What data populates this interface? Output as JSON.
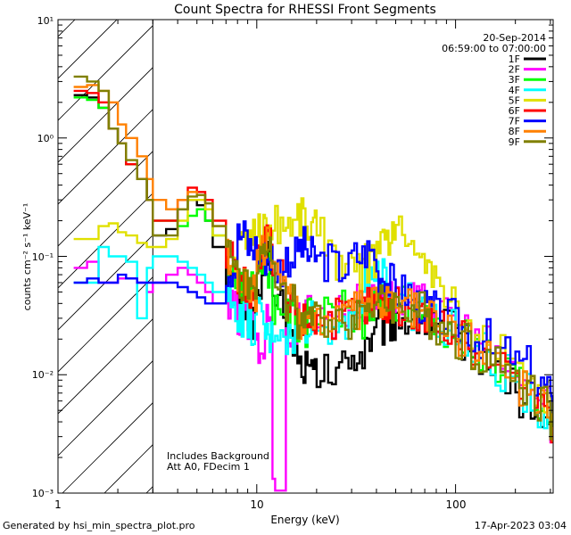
{
  "chart_data": {
    "type": "line",
    "title": "Count Spectra for RHESSI Front Segments",
    "xlabel": "Energy (keV)",
    "ylabel": "counts cm⁻² s⁻¹ keV⁻¹",
    "xscale": "log",
    "yscale": "log",
    "xlim": [
      1,
      300
    ],
    "ylim": [
      0.001,
      10
    ],
    "x_tick_labels": [
      "1",
      "10",
      "100"
    ],
    "y_tick_labels": [
      "10⁻³",
      "10⁻²",
      "10⁻¹",
      "10⁰",
      "10¹"
    ],
    "date": "20-Sep-2014",
    "time_range": "06:59:00 to 07:00:00",
    "shaded_region": {
      "x_max": 3,
      "pattern": "diagonal hatch"
    },
    "annotations": [
      "Includes Background",
      "Att A0, FDecim 1"
    ],
    "legend_position": "top-right",
    "series": [
      {
        "name": "1F",
        "color": "#000000",
        "x": [
          1.2,
          1.4,
          1.6,
          1.8,
          2,
          2.2,
          2.5,
          2.8,
          3,
          3.5,
          4,
          4.5,
          5,
          5.5,
          6,
          7,
          8,
          9,
          10,
          11,
          12,
          14,
          16,
          18,
          20,
          25,
          30,
          35,
          40,
          45,
          50,
          60,
          70,
          80,
          100,
          120,
          150,
          200,
          250,
          300
        ],
        "y": [
          2.3,
          2.2,
          1.8,
          1.2,
          0.9,
          0.6,
          0.45,
          0.3,
          0.15,
          0.17,
          0.25,
          0.3,
          0.27,
          0.2,
          0.12,
          0.06,
          0.04,
          0.03,
          0.05,
          0.1,
          0.04,
          0.02,
          0.012,
          0.01,
          0.01,
          0.012,
          0.015,
          0.02,
          0.025,
          0.028,
          0.03,
          0.03,
          0.028,
          0.025,
          0.02,
          0.015,
          0.01,
          0.006,
          0.004,
          0.003
        ]
      },
      {
        "name": "2F",
        "color": "#ff00ff",
        "x": [
          1.2,
          1.4,
          1.6,
          1.8,
          2,
          2.2,
          2.5,
          2.8,
          3,
          3.5,
          4,
          4.5,
          5,
          5.5,
          6,
          7,
          8,
          9,
          10,
          11,
          12,
          14,
          16,
          18,
          20,
          25,
          30,
          35,
          40,
          45,
          50,
          60,
          70,
          80,
          100,
          120,
          150,
          200,
          250,
          300
        ],
        "y": [
          0.08,
          0.09,
          0.06,
          0.06,
          0.065,
          0.065,
          0.06,
          0.05,
          0.06,
          0.07,
          0.08,
          0.07,
          0.06,
          0.05,
          0.04,
          0.035,
          0.03,
          0.025,
          0.015,
          0.03,
          0.001,
          0.02,
          0.03,
          0.035,
          0.03,
          0.035,
          0.04,
          0.04,
          0.045,
          0.045,
          0.04,
          0.04,
          0.035,
          0.03,
          0.025,
          0.018,
          0.012,
          0.008,
          0.006,
          0.004
        ]
      },
      {
        "name": "3F",
        "color": "#00ff00",
        "x": [
          1.2,
          1.4,
          1.6,
          1.8,
          2,
          2.2,
          2.5,
          2.8,
          3,
          3.5,
          4,
          4.5,
          5,
          5.5,
          6,
          7,
          8,
          9,
          10,
          11,
          12,
          14,
          16,
          18,
          20,
          25,
          30,
          35,
          40,
          45,
          50,
          60,
          70,
          80,
          100,
          120,
          150,
          200,
          250,
          300
        ],
        "y": [
          2.2,
          2.1,
          1.8,
          1.2,
          0.9,
          0.6,
          0.45,
          0.3,
          0.2,
          0.2,
          0.18,
          0.22,
          0.25,
          0.2,
          0.15,
          0.08,
          0.05,
          0.05,
          0.1,
          0.08,
          0.04,
          0.03,
          0.025,
          0.03,
          0.03,
          0.035,
          0.03,
          0.035,
          0.04,
          0.04,
          0.038,
          0.035,
          0.03,
          0.025,
          0.02,
          0.016,
          0.012,
          0.008,
          0.005,
          0.004
        ]
      },
      {
        "name": "4F",
        "color": "#00ffff",
        "x": [
          1.2,
          1.4,
          1.6,
          1.8,
          2,
          2.2,
          2.5,
          2.8,
          3,
          3.5,
          4,
          4.5,
          5,
          5.5,
          6,
          7,
          8,
          9,
          10,
          11,
          12,
          14,
          16,
          18,
          20,
          25,
          30,
          35,
          40,
          45,
          50,
          60,
          70,
          80,
          100,
          120,
          150,
          200,
          250,
          300
        ],
        "y": [
          0.06,
          0.06,
          0.12,
          0.1,
          0.1,
          0.09,
          0.03,
          0.08,
          0.1,
          0.1,
          0.09,
          0.08,
          0.07,
          0.06,
          0.05,
          0.04,
          0.03,
          0.025,
          0.03,
          0.02,
          0.025,
          0.02,
          0.025,
          0.03,
          0.025,
          0.03,
          0.035,
          0.06,
          0.08,
          0.05,
          0.04,
          0.035,
          0.03,
          0.025,
          0.02,
          0.015,
          0.01,
          0.007,
          0.005,
          0.004
        ]
      },
      {
        "name": "5F",
        "color": "#e0e000",
        "x": [
          1.2,
          1.4,
          1.6,
          1.8,
          2,
          2.2,
          2.5,
          2.8,
          3,
          3.5,
          4,
          4.5,
          5,
          5.5,
          6,
          7,
          8,
          9,
          10,
          11,
          12,
          14,
          16,
          18,
          20,
          25,
          30,
          35,
          40,
          45,
          50,
          60,
          70,
          80,
          100,
          120,
          150,
          200,
          250,
          300
        ],
        "y": [
          0.14,
          0.14,
          0.18,
          0.19,
          0.16,
          0.15,
          0.13,
          0.12,
          0.12,
          0.14,
          0.2,
          0.3,
          0.3,
          0.25,
          0.15,
          0.1,
          0.12,
          0.16,
          0.17,
          0.18,
          0.19,
          0.2,
          0.22,
          0.18,
          0.15,
          0.09,
          0.07,
          0.09,
          0.12,
          0.15,
          0.16,
          0.13,
          0.08,
          0.05,
          0.03,
          0.02,
          0.015,
          0.01,
          0.006,
          0.004
        ]
      },
      {
        "name": "6F",
        "color": "#ff0000",
        "x": [
          1.2,
          1.4,
          1.6,
          1.8,
          2,
          2.2,
          2.5,
          2.8,
          3,
          3.5,
          4,
          4.5,
          5,
          5.5,
          6,
          7,
          8,
          9,
          10,
          11,
          12,
          14,
          16,
          18,
          20,
          25,
          30,
          35,
          40,
          45,
          50,
          60,
          70,
          80,
          100,
          120,
          150,
          200,
          250,
          300
        ],
        "y": [
          2.5,
          2.4,
          2.0,
          1.2,
          0.9,
          0.6,
          0.45,
          0.3,
          0.2,
          0.2,
          0.3,
          0.38,
          0.35,
          0.3,
          0.2,
          0.1,
          0.06,
          0.05,
          0.1,
          0.13,
          0.07,
          0.04,
          0.03,
          0.03,
          0.03,
          0.03,
          0.035,
          0.04,
          0.04,
          0.04,
          0.038,
          0.035,
          0.03,
          0.025,
          0.02,
          0.015,
          0.012,
          0.008,
          0.006,
          0.004
        ]
      },
      {
        "name": "7F",
        "color": "#0000ff",
        "x": [
          1.2,
          1.4,
          1.6,
          1.8,
          2,
          2.2,
          2.5,
          2.8,
          3,
          3.5,
          4,
          4.5,
          5,
          5.5,
          6,
          7,
          8,
          9,
          10,
          11,
          12,
          14,
          16,
          18,
          20,
          25,
          30,
          35,
          40,
          45,
          50,
          60,
          70,
          80,
          100,
          120,
          150,
          200,
          250,
          300
        ],
        "y": [
          0.06,
          0.065,
          0.06,
          0.06,
          0.07,
          0.065,
          0.06,
          0.06,
          0.06,
          0.06,
          0.055,
          0.05,
          0.045,
          0.04,
          0.04,
          0.08,
          0.15,
          0.12,
          0.1,
          0.1,
          0.08,
          0.1,
          0.12,
          0.1,
          0.09,
          0.08,
          0.1,
          0.11,
          0.07,
          0.06,
          0.05,
          0.04,
          0.035,
          0.03,
          0.025,
          0.02,
          0.015,
          0.012,
          0.008,
          0.005
        ]
      },
      {
        "name": "8F",
        "color": "#ff8000",
        "x": [
          1.2,
          1.4,
          1.6,
          1.8,
          2,
          2.2,
          2.5,
          2.8,
          3,
          3.5,
          4,
          4.5,
          5,
          5.5,
          6,
          7,
          8,
          9,
          10,
          11,
          12,
          14,
          16,
          18,
          20,
          25,
          30,
          35,
          40,
          45,
          50,
          60,
          70,
          80,
          100,
          120,
          150,
          200,
          250,
          300
        ],
        "y": [
          2.7,
          2.8,
          2.5,
          2.0,
          1.3,
          1.0,
          0.7,
          0.45,
          0.3,
          0.25,
          0.3,
          0.35,
          0.33,
          0.28,
          0.18,
          0.1,
          0.06,
          0.05,
          0.1,
          0.12,
          0.07,
          0.04,
          0.03,
          0.03,
          0.03,
          0.03,
          0.035,
          0.04,
          0.04,
          0.04,
          0.038,
          0.035,
          0.03,
          0.025,
          0.02,
          0.015,
          0.012,
          0.008,
          0.006,
          0.004
        ]
      },
      {
        "name": "9F",
        "color": "#808000",
        "x": [
          1.2,
          1.4,
          1.6,
          1.8,
          2,
          2.2,
          2.5,
          2.8,
          3,
          3.5,
          4,
          4.5,
          5,
          5.5,
          6,
          7,
          8,
          9,
          10,
          11,
          12,
          14,
          16,
          18,
          20,
          25,
          30,
          35,
          40,
          45,
          50,
          60,
          70,
          80,
          100,
          120,
          150,
          200,
          250,
          300
        ],
        "y": [
          3.3,
          3.0,
          2.5,
          1.2,
          0.9,
          0.65,
          0.45,
          0.3,
          0.15,
          0.15,
          0.25,
          0.32,
          0.33,
          0.28,
          0.18,
          0.1,
          0.06,
          0.05,
          0.1,
          0.11,
          0.06,
          0.04,
          0.03,
          0.03,
          0.03,
          0.03,
          0.035,
          0.04,
          0.04,
          0.04,
          0.038,
          0.035,
          0.03,
          0.025,
          0.02,
          0.015,
          0.012,
          0.008,
          0.006,
          0.004
        ]
      }
    ]
  },
  "footer": {
    "generated_by": "Generated by hsi_min_spectra_plot.pro",
    "timestamp": "17-Apr-2023 03:04"
  }
}
